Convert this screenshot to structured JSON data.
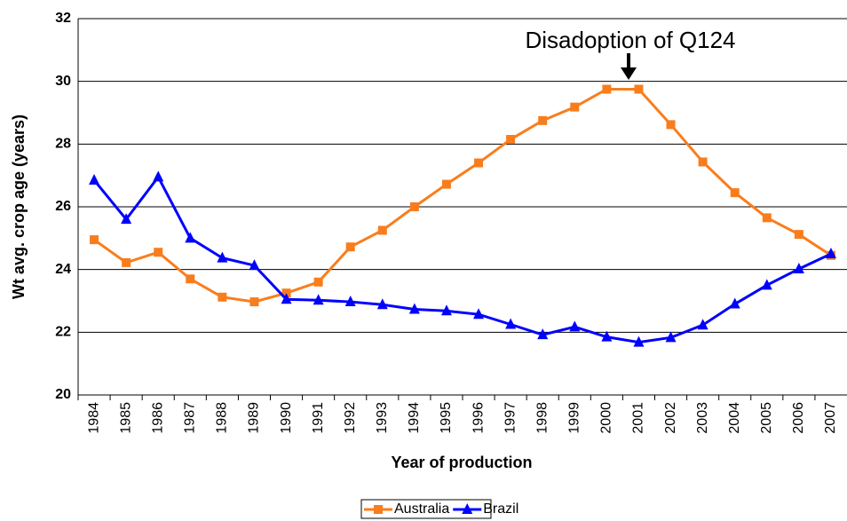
{
  "chart_data": {
    "type": "line",
    "x_label": "Year of production",
    "y_label": "Wt avg. crop age (years)",
    "annotation": "Disadoption of Q124",
    "categories": [
      "1984",
      "1985",
      "1986",
      "1987",
      "1988",
      "1989",
      "1990",
      "1991",
      "1992",
      "1993",
      "1994",
      "1995",
      "1996",
      "1997",
      "1998",
      "1999",
      "2000",
      "2001",
      "2002",
      "2003",
      "2004",
      "2005",
      "2006",
      "2007"
    ],
    "series": [
      {
        "name": "Australia",
        "color": "#f97d1c",
        "marker": "square",
        "values": [
          24.95,
          24.22,
          24.55,
          23.7,
          23.12,
          22.97,
          23.25,
          23.6,
          24.72,
          25.25,
          26.0,
          26.72,
          27.4,
          28.15,
          28.75,
          29.18,
          29.75,
          29.75,
          28.62,
          27.43,
          26.45,
          25.65,
          25.12,
          24.45
        ]
      },
      {
        "name": "Brazil",
        "color": "#0000ff",
        "marker": "triangle",
        "values": [
          26.85,
          25.6,
          26.95,
          25.0,
          24.37,
          24.13,
          23.05,
          23.02,
          22.97,
          22.88,
          22.73,
          22.68,
          22.57,
          22.25,
          21.92,
          22.17,
          21.85,
          21.68,
          21.83,
          22.23,
          22.9,
          23.5,
          24.02,
          24.5
        ]
      }
    ],
    "ylim": [
      20,
      32
    ],
    "yticks": [
      20,
      22,
      24,
      26,
      28,
      30,
      32
    ],
    "grid": true,
    "legend": "bottom"
  }
}
